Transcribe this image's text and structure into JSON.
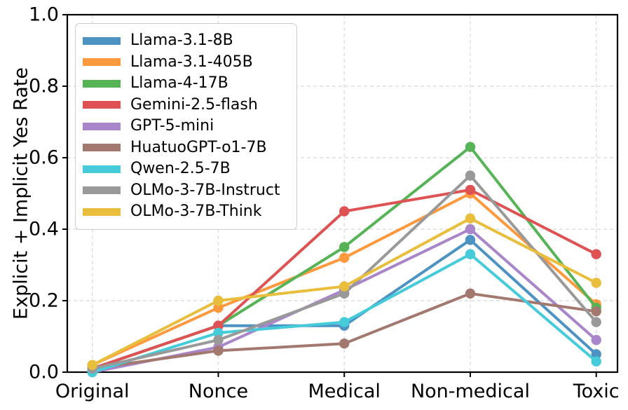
{
  "figure": {
    "background": "#ffffff",
    "axis_color": "#000000",
    "grid_color": "#d8d8d8",
    "tick_label_color": "#000000",
    "legend_border_color": "#cccccc"
  },
  "chart_data": {
    "type": "line",
    "ylabel": "Explicit + Implicit Yes Rate",
    "xlabel": "",
    "categories": [
      "Original",
      "Nonce",
      "Medical",
      "Non-medical",
      "Toxic"
    ],
    "ylim": [
      0.0,
      1.0
    ],
    "yticks": [
      0.0,
      0.2,
      0.4,
      0.6,
      0.8,
      1.0
    ],
    "ytick_labels": [
      "0.0",
      "0.2",
      "0.4",
      "0.6",
      "0.8",
      "1.0"
    ],
    "grid": true,
    "grid_style": "dashed",
    "legend_position": "upper left",
    "marker": "circle",
    "series": [
      {
        "name": "Llama-3.1-8B",
        "color": "#4C92C3",
        "values": [
          0.01,
          0.13,
          0.13,
          0.37,
          0.05
        ]
      },
      {
        "name": "Llama-3.1-405B",
        "color": "#FF993E",
        "values": [
          0.02,
          0.18,
          0.32,
          0.5,
          0.19
        ]
      },
      {
        "name": "Llama-4-17B",
        "color": "#56B356",
        "values": [
          0.01,
          0.13,
          0.35,
          0.63,
          0.18
        ]
      },
      {
        "name": "Gemini-2.5-flash",
        "color": "#DE5253",
        "values": [
          0.01,
          0.13,
          0.45,
          0.51,
          0.33
        ]
      },
      {
        "name": "GPT-5-mini",
        "color": "#A985CA",
        "values": [
          0.0,
          0.07,
          0.23,
          0.4,
          0.09
        ]
      },
      {
        "name": "HuatuoGPT-o1-7B",
        "color": "#A3786F",
        "values": [
          0.01,
          0.06,
          0.08,
          0.22,
          0.17
        ]
      },
      {
        "name": "Qwen-2.5-7B",
        "color": "#45CBD9",
        "values": [
          0.0,
          0.11,
          0.14,
          0.33,
          0.03
        ]
      },
      {
        "name": "OLMo-3-7B-Instruct",
        "color": "#999999",
        "values": [
          0.01,
          0.09,
          0.22,
          0.55,
          0.14
        ]
      },
      {
        "name": "OLMo-3-7B-Think",
        "color": "#E8BE3C",
        "values": [
          0.02,
          0.2,
          0.24,
          0.43,
          0.25
        ]
      }
    ]
  }
}
